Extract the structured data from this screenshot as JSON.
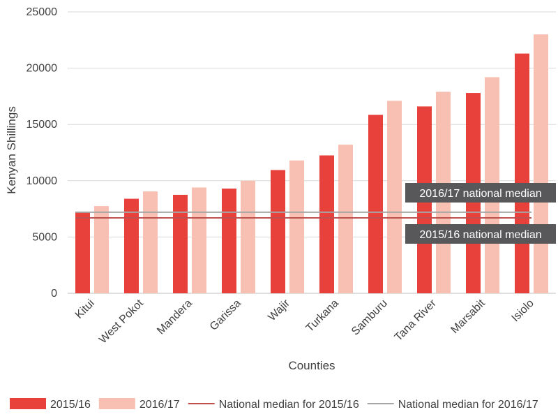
{
  "chart_data": {
    "type": "bar",
    "categories": [
      "Kitui",
      "West Pokot",
      "Mandera",
      "Garissa",
      "Wajir",
      "Turkana",
      "Samburu",
      "Tana River",
      "Marsabit",
      "Isiolo"
    ],
    "series": [
      {
        "name": "2015/16",
        "color": "#e8403a",
        "values": [
          7200,
          8400,
          8750,
          9300,
          10950,
          12250,
          15850,
          16600,
          17800,
          21300
        ]
      },
      {
        "name": "2016/17",
        "color": "#f7c0b2",
        "values": [
          7750,
          9050,
          9400,
          10000,
          11800,
          13200,
          17100,
          17900,
          19200,
          23000
        ]
      }
    ],
    "reference_lines": [
      {
        "name": "National median for 2015/16",
        "value": 6700,
        "color": "#c0504d",
        "callout": "2015/16 national median"
      },
      {
        "name": "National median for 2016/17",
        "value": 7200,
        "color": "#a6a6a6",
        "callout": "2016/17 national median"
      }
    ],
    "xlabel": "Counties",
    "ylabel": "Kenyan Shillings",
    "ylim": [
      0,
      25000
    ],
    "yticks": [
      0,
      5000,
      10000,
      15000,
      20000,
      25000
    ],
    "grid": true,
    "legend_position": "bottom",
    "callout_color": "#58585a"
  }
}
